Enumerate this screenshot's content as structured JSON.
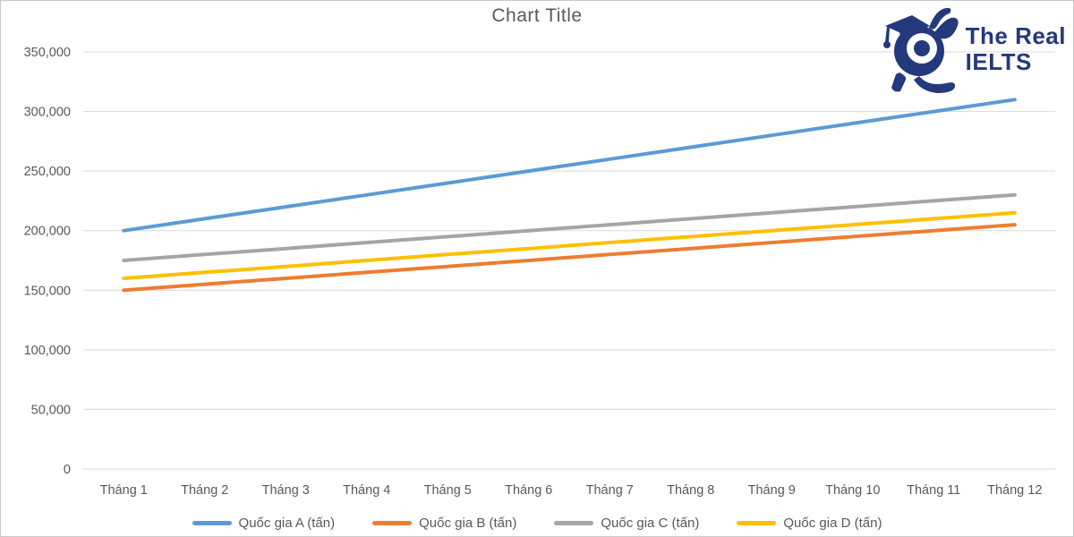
{
  "chart_data": {
    "type": "line",
    "title": "Chart Title",
    "categories": [
      "Tháng 1",
      "Tháng 2",
      "Tháng 3",
      "Tháng 4",
      "Tháng 5",
      "Tháng 6",
      "Tháng 7",
      "Tháng 8",
      "Tháng 9",
      "Tháng 10",
      "Tháng 11",
      "Tháng 12"
    ],
    "series": [
      {
        "name": "Quốc gia A (tấn)",
        "color": "#5B9BD5",
        "values": [
          200000,
          210000,
          220000,
          230000,
          240000,
          250000,
          260000,
          270000,
          280000,
          290000,
          300000,
          310000
        ]
      },
      {
        "name": "Quốc gia B (tấn)",
        "color": "#ED7D31",
        "values": [
          150000,
          155000,
          160000,
          165000,
          170000,
          175000,
          180000,
          185000,
          190000,
          195000,
          200000,
          205000
        ]
      },
      {
        "name": "Quốc gia C (tấn)",
        "color": "#A5A5A5",
        "values": [
          175000,
          180000,
          185000,
          190000,
          195000,
          200000,
          205000,
          210000,
          215000,
          220000,
          225000,
          230000
        ]
      },
      {
        "name": "Quốc gia D (tấn)",
        "color": "#FFC000",
        "values": [
          160000,
          165000,
          170000,
          175000,
          180000,
          185000,
          190000,
          195000,
          200000,
          205000,
          210000,
          215000
        ]
      }
    ],
    "y_axis": {
      "min": 0,
      "max": 350000,
      "tick_step": 50000,
      "tick_labels": [
        "0",
        "50,000",
        "100,000",
        "150,000",
        "200,000",
        "250,000",
        "300,000",
        "350,000"
      ]
    },
    "x_axis": {
      "label": ""
    },
    "grid": true,
    "legend_position": "bottom",
    "colors": {
      "gridline": "#d9d9d9",
      "axis_text": "#595959",
      "title_text": "#595959"
    }
  },
  "logo": {
    "line1": "The Real",
    "line2": "IELTS",
    "color": "#24397b"
  }
}
